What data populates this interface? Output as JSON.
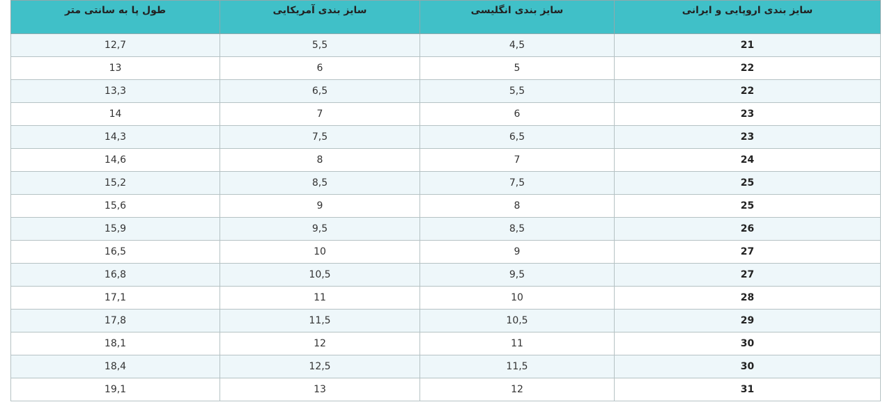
{
  "table": {
    "headers": [
      "سایز بندی اروپایی و ایرانی",
      "سایز بندی انگلیسی",
      "سایز بندی آمریکایی",
      "طول پا به سانتی متر"
    ],
    "rows": [
      [
        "21",
        "4,5",
        "5,5",
        "12,7"
      ],
      [
        "22",
        "5",
        "6",
        "13"
      ],
      [
        "22",
        "5,5",
        "6,5",
        "13,3"
      ],
      [
        "23",
        "6",
        "7",
        "14"
      ],
      [
        "23",
        "6,5",
        "7,5",
        "14,3"
      ],
      [
        "24",
        "7",
        "8",
        "14,6"
      ],
      [
        "25",
        "7,5",
        "8,5",
        "15,2"
      ],
      [
        "25",
        "8",
        "9",
        "15,6"
      ],
      [
        "26",
        "8,5",
        "9,5",
        "15,9"
      ],
      [
        "27",
        "9",
        "10",
        "16,5"
      ],
      [
        "27",
        "9,5",
        "10,5",
        "16,8"
      ],
      [
        "28",
        "10",
        "11",
        "17,1"
      ],
      [
        "29",
        "10,5",
        "11,5",
        "17,8"
      ],
      [
        "30",
        "11",
        "12",
        "18,1"
      ],
      [
        "30",
        "11,5",
        "12,5",
        "18,4"
      ],
      [
        "31",
        "12",
        "13",
        "19,1"
      ]
    ]
  }
}
